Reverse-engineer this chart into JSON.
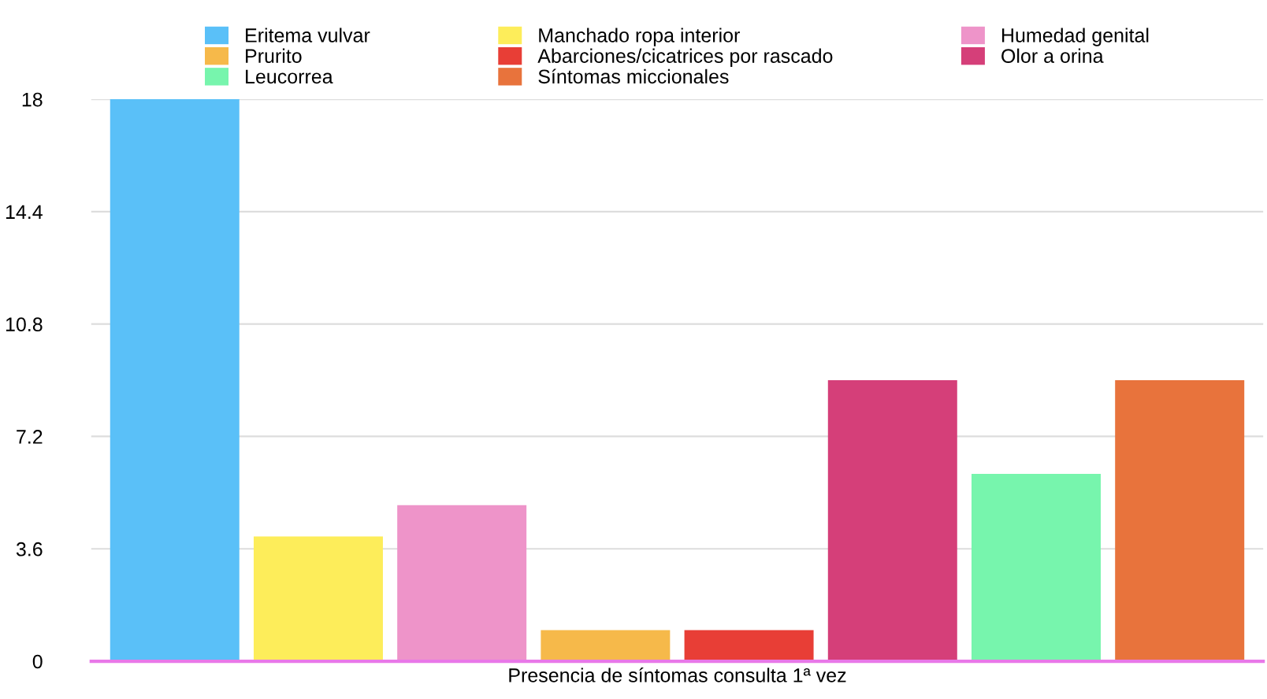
{
  "chart_data": {
    "type": "bar",
    "categories": [
      "Presencia de síntomas consulta 1ª vez"
    ],
    "series": [
      {
        "name": "Eritema vulvar",
        "color": "#5ac0f8",
        "values": [
          18
        ]
      },
      {
        "name": "Manchado ropa interior",
        "color": "#fded5a",
        "values": [
          4
        ]
      },
      {
        "name": "Humedad genital",
        "color": "#ee94c9",
        "values": [
          5
        ]
      },
      {
        "name": "Prurito",
        "color": "#f6b94a",
        "values": [
          1
        ]
      },
      {
        "name": "Abarciones/cicatrices por rascado",
        "color": "#e83e36",
        "values": [
          1
        ]
      },
      {
        "name": "Olor a orina",
        "color": "#d53f79",
        "values": [
          9
        ]
      },
      {
        "name": "Leucorrea",
        "color": "#77f5ad",
        "values": [
          6
        ]
      },
      {
        "name": "Síntomas miccionales",
        "color": "#e8733c",
        "values": [
          9
        ]
      }
    ],
    "ylim": [
      0,
      18
    ],
    "yticks": [
      0,
      3.6,
      7.2,
      10.8,
      14.4,
      18
    ],
    "grid": "y",
    "legend": "top"
  }
}
